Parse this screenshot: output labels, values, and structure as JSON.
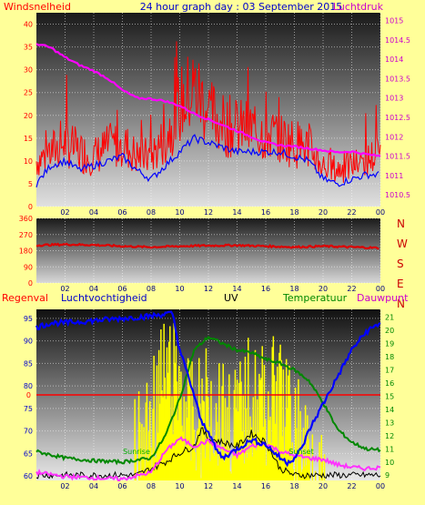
{
  "chart_data": [
    {
      "type": "line",
      "title": "24 hour graph day : 03 September 2015",
      "left_axis_label": "Windsnelheid",
      "right_axis_label": "Luchtdruk",
      "x_ticks": [
        "02",
        "04",
        "06",
        "08",
        "10",
        "12",
        "14",
        "16",
        "18",
        "20",
        "22",
        "00"
      ],
      "y_left_ticks": [
        0,
        5,
        10,
        15,
        20,
        25,
        30,
        35,
        40
      ],
      "y_left_range": [
        0,
        42.5
      ],
      "y_right_ticks": [
        1010.5,
        1011,
        1011.5,
        1012,
        1012.5,
        1013,
        1013.5,
        1014,
        1014.5,
        1015
      ],
      "y_right_range": [
        1010.2,
        1015.2
      ],
      "series": [
        {
          "color": "#ff0000",
          "axis": "left",
          "style": "noisy-band",
          "x": [
            0,
            1,
            2,
            3,
            4,
            5,
            6,
            7,
            8,
            9,
            10,
            11,
            12,
            13,
            14,
            15,
            16,
            17,
            18,
            19,
            20,
            21,
            22,
            23,
            24
          ],
          "y": [
            10,
            12,
            14,
            12,
            11,
            13,
            14,
            11,
            11,
            15,
            22,
            26,
            21,
            18,
            17,
            17,
            16,
            15,
            14,
            13,
            9,
            8,
            9,
            10,
            12
          ]
        },
        {
          "color": "#0000ff",
          "axis": "left",
          "x": [
            0,
            1,
            2,
            3,
            4,
            5,
            6,
            7,
            8,
            9,
            10,
            11,
            12,
            13,
            14,
            15,
            16,
            17,
            18,
            19,
            20,
            21,
            22,
            23,
            24
          ],
          "y": [
            5,
            9,
            10,
            8,
            9,
            10,
            11,
            8,
            6,
            9,
            12,
            15,
            14,
            13,
            12,
            12,
            12,
            12,
            11,
            10,
            6,
            5,
            6,
            7,
            7
          ]
        },
        {
          "color": "#ff00ff",
          "axis": "right",
          "x": [
            0,
            1,
            2,
            3,
            4,
            5,
            6,
            7,
            8,
            9,
            10,
            11,
            12,
            13,
            14,
            15,
            16,
            17,
            18,
            19,
            20,
            21,
            22,
            23,
            24
          ],
          "y": [
            1014.4,
            1014.3,
            1014.05,
            1013.85,
            1013.7,
            1013.5,
            1013.2,
            1013.0,
            1012.98,
            1012.92,
            1012.8,
            1012.6,
            1012.45,
            1012.3,
            1012.15,
            1012.0,
            1011.85,
            1011.78,
            1011.75,
            1011.7,
            1011.65,
            1011.6,
            1011.62,
            1011.55,
            1011.5
          ]
        }
      ]
    },
    {
      "type": "line",
      "x_ticks": [
        "02",
        "04",
        "06",
        "08",
        "10",
        "12",
        "14",
        "16",
        "18",
        "20",
        "22",
        "00"
      ],
      "y_left_ticks": [
        0,
        90,
        180,
        270,
        360
      ],
      "y_left_range": [
        0,
        360
      ],
      "right_labels": [
        "N",
        "W",
        "S",
        "E",
        "N"
      ],
      "series": [
        {
          "color": "#dd0000",
          "axis": "left",
          "x": [
            0,
            2,
            4,
            6,
            8,
            10,
            12,
            14,
            16,
            18,
            20,
            22,
            24
          ],
          "y": [
            210,
            215,
            212,
            205,
            200,
            205,
            208,
            210,
            205,
            200,
            205,
            200,
            195
          ]
        }
      ]
    },
    {
      "type": "line",
      "legend": [
        "Regenval",
        "Luchtvochtigheid",
        "UV",
        "Temperatuur",
        "Dauwpunt"
      ],
      "annotations": [
        "Sunrise",
        "Sunset"
      ],
      "x_ticks": [
        "02",
        "04",
        "06",
        "08",
        "10",
        "12",
        "14",
        "16",
        "18",
        "20",
        "22",
        "00"
      ],
      "y_left_ticks": [
        60,
        65,
        70,
        75,
        80,
        85,
        90,
        95
      ],
      "y_left_range": [
        59,
        97
      ],
      "y_right_ticks": [
        9,
        10,
        11,
        12,
        13,
        14,
        15,
        16,
        17,
        18,
        19,
        20,
        21
      ],
      "y_right_range": [
        8.6,
        21.6
      ],
      "rain_marker": {
        "label": "0",
        "value": 0
      },
      "daylight": {
        "start": 6.8,
        "end": 20.3
      },
      "series": [
        {
          "name": "Luchtvochtigheid",
          "color": "#0000ff",
          "axis": "left",
          "x": [
            0,
            1,
            2,
            4,
            6,
            8,
            9,
            9.5,
            10,
            11,
            11.5,
            12,
            12.5,
            13,
            14,
            15,
            16,
            17,
            17.5,
            18,
            18.5,
            19,
            19.5,
            20,
            21,
            22,
            23,
            24
          ],
          "y": [
            93,
            94,
            94,
            94.5,
            95,
            95.5,
            96,
            96,
            88,
            78,
            72,
            70,
            66,
            64,
            66,
            68,
            67,
            64,
            63,
            64,
            66,
            70,
            73,
            76,
            82,
            88,
            92,
            94
          ]
        },
        {
          "name": "UV",
          "color": "#ffff00",
          "axis": "left",
          "x": [
            6.8,
            7.5,
            8.5,
            9,
            10,
            11,
            12,
            13,
            14,
            15,
            16,
            17,
            18,
            19,
            19.5,
            20.3
          ],
          "y": [
            78,
            82,
            92,
            96,
            94,
            85,
            90,
            88,
            86,
            92,
            90,
            92,
            84,
            80,
            78,
            62
          ]
        },
        {
          "name": "Temperatuur",
          "color": "#008800",
          "axis": "right",
          "x": [
            0,
            2,
            4,
            6,
            8,
            9,
            10,
            11,
            12,
            13,
            14,
            15,
            16,
            17,
            18,
            19,
            20,
            21,
            22,
            23,
            24
          ],
          "y": [
            10.8,
            10.3,
            10.1,
            10.0,
            10.3,
            12.0,
            14.8,
            18.5,
            19.5,
            19.0,
            18.5,
            18.3,
            17.8,
            17.5,
            17.0,
            16.2,
            14.5,
            12.5,
            11.5,
            11.0,
            10.9
          ]
        },
        {
          "name": "Dauwpunt",
          "color": "#ff33ff",
          "axis": "right",
          "x": [
            0,
            2,
            4,
            6,
            8,
            9,
            10,
            11,
            12,
            13,
            14,
            15,
            16,
            17,
            18,
            19,
            20,
            21,
            22,
            23,
            24
          ],
          "y": [
            9.2,
            8.9,
            8.8,
            8.7,
            9.2,
            10.8,
            11.8,
            11.2,
            11.6,
            11.0,
            10.5,
            11.2,
            11.4,
            10.8,
            10.5,
            10.3,
            10.2,
            9.8,
            9.6,
            9.5,
            9.6
          ]
        },
        {
          "name": "Regenval",
          "color": "#000000",
          "axis": "right",
          "x": [
            0,
            7,
            9,
            10,
            11,
            11.5,
            12,
            13,
            14,
            15,
            16,
            17,
            18,
            24
          ],
          "y": [
            9,
            9,
            10,
            10.7,
            11.2,
            12.5,
            11.8,
            11.5,
            11.2,
            12.2,
            11.5,
            9.5,
            9,
            9
          ]
        }
      ]
    }
  ],
  "sun_labels": {
    "sunrise": "Sunrise",
    "sunset": "Sunset"
  },
  "colors": {
    "background": "#ffff99",
    "title": "#0000cc",
    "left_label": "#ff0000",
    "right_label": "#cc00cc"
  }
}
